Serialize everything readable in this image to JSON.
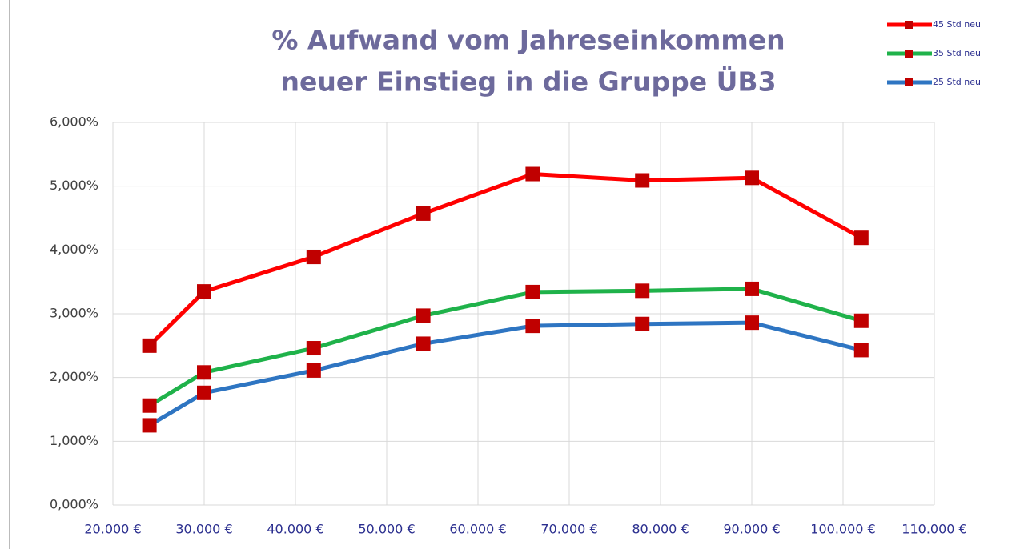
{
  "chart_data": {
    "type": "line",
    "title": [
      "% Aufwand vom Jahreseinkommen",
      "neuer Einstieg in die Gruppe ÜB3"
    ],
    "x": [
      24000,
      30000,
      42000,
      54000,
      66000,
      78000,
      90000,
      102000
    ],
    "series": [
      {
        "name": "45 Std neu",
        "color": "#ff0000",
        "values": [
          2.5,
          3.35,
          3.89,
          4.57,
          5.19,
          5.09,
          5.13,
          4.19
        ]
      },
      {
        "name": "35 Std neu",
        "color": "#1fb24a",
        "values": [
          1.56,
          2.08,
          2.46,
          2.97,
          3.34,
          3.36,
          3.39,
          2.89
        ]
      },
      {
        "name": "25 Std neu",
        "color": "#2e75c2",
        "values": [
          1.25,
          1.76,
          2.11,
          2.53,
          2.81,
          2.84,
          2.86,
          2.43
        ]
      }
    ],
    "marker_color": "#c00000",
    "xlim": [
      20000,
      110000
    ],
    "xticks": [
      {
        "value": 20000,
        "label": "20.000 €"
      },
      {
        "value": 30000,
        "label": "30.000 €"
      },
      {
        "value": 40000,
        "label": "40.000 €"
      },
      {
        "value": 50000,
        "label": "50.000 €"
      },
      {
        "value": 60000,
        "label": "60.000 €"
      },
      {
        "value": 70000,
        "label": "70.000 €"
      },
      {
        "value": 80000,
        "label": "80.000 €"
      },
      {
        "value": 90000,
        "label": "90.000 €"
      },
      {
        "value": 100000,
        "label": "100.000 €"
      },
      {
        "value": 110000,
        "label": "110.000 €"
      }
    ],
    "ylim": [
      0,
      6
    ],
    "yticks": [
      {
        "value": 0,
        "label": "0,000%"
      },
      {
        "value": 1,
        "label": "1,000%"
      },
      {
        "value": 2,
        "label": "2,000%"
      },
      {
        "value": 3,
        "label": "3,000%"
      },
      {
        "value": 4,
        "label": "4,000%"
      },
      {
        "value": 5,
        "label": "5,000%"
      },
      {
        "value": 6,
        "label": "6,000%"
      }
    ],
    "grid": true,
    "legend": "top-right"
  }
}
